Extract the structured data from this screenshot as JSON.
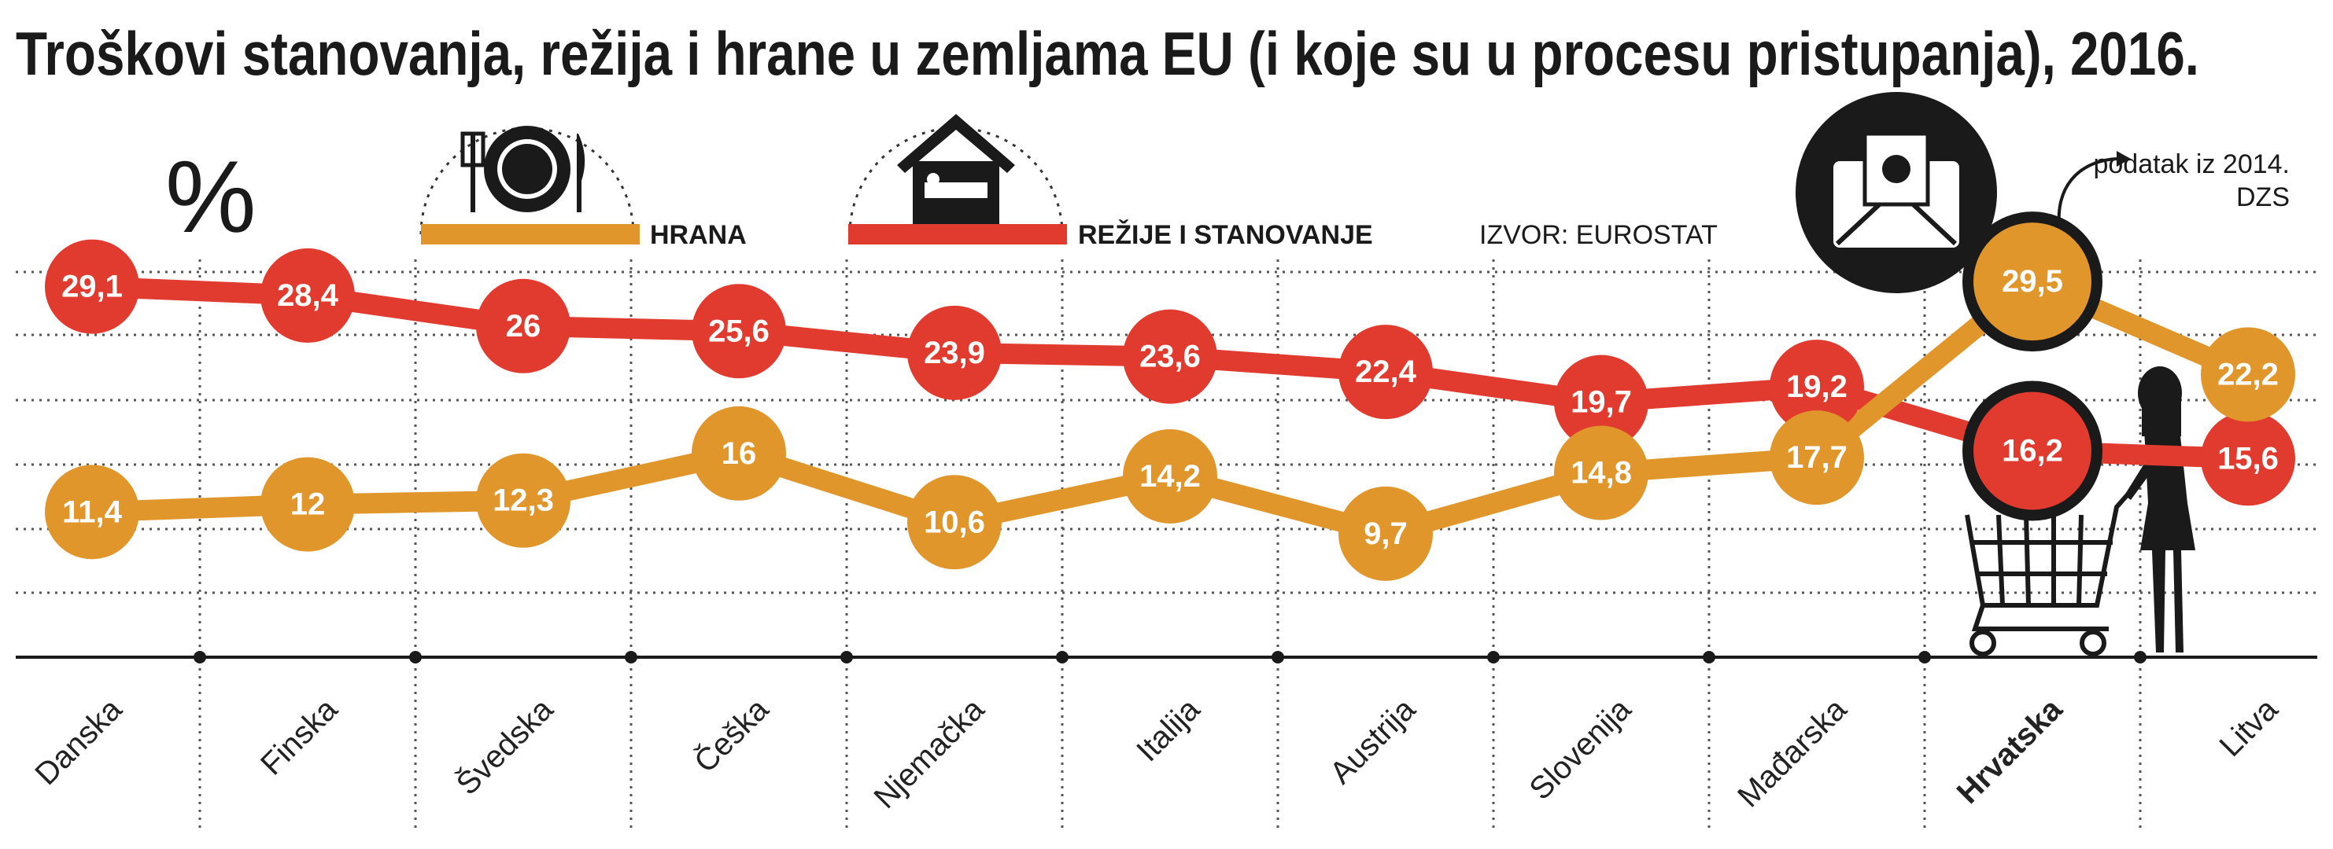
{
  "title": "Troškovi stanovanja, režija i hrane u zemljama EU (i koje su u procesu pristupanja), 2016.",
  "unit_label": "%",
  "legend": {
    "food": {
      "label": "HRANA",
      "icon": "plate-fork-knife-icon",
      "color": "#e0962a"
    },
    "housing": {
      "label": "REŽIJE I STANOVANJE",
      "icon": "house-bed-icon",
      "color": "#e03b2e"
    }
  },
  "source": "IZVOR: EUROSTAT",
  "note": {
    "line1": "podatak iz 2014.",
    "line2": "DZS"
  },
  "decorations": [
    "envelope-money-icon",
    "shopping-cart-icon",
    "woman-shopper-icon"
  ],
  "chart_data": {
    "type": "line",
    "title": "Troškovi stanovanja, režija i hrane u zemljama EU (i koje su u procesu pristupanja), 2016.",
    "ylabel": "%",
    "ylim": [
      0,
      30
    ],
    "grid": true,
    "legend_placement": "top",
    "highlight_category": "Hrvatska",
    "categories": [
      "Danska",
      "Finska",
      "Švedska",
      "Češka",
      "Njemačka",
      "Italija",
      "Austrija",
      "Slovenija",
      "Mađarska",
      "Hrvatska",
      "Litva"
    ],
    "series": [
      {
        "name": "REŽIJE I STANOVANJE",
        "color": "#e03b2e",
        "values": [
          29.1,
          28.4,
          26,
          25.6,
          23.9,
          23.6,
          22.4,
          19.7,
          19.2,
          16.2,
          15.6
        ],
        "labels": [
          "29,1",
          "28,4",
          "26",
          "25,6",
          "23,9",
          "23,6",
          "22,4",
          "19,7",
          "19,2",
          "16,2",
          "15,6"
        ]
      },
      {
        "name": "HRANA",
        "color": "#e0962a",
        "values": [
          11.4,
          12,
          12.3,
          16,
          10.6,
          14.2,
          9.7,
          14.8,
          17.7,
          29.5,
          22.2
        ],
        "labels": [
          "11,4",
          "12",
          "12,3",
          "16",
          "10,6",
          "14,2",
          "9,7",
          "14,8",
          "17,7",
          "29,5",
          "22,2"
        ]
      }
    ]
  }
}
